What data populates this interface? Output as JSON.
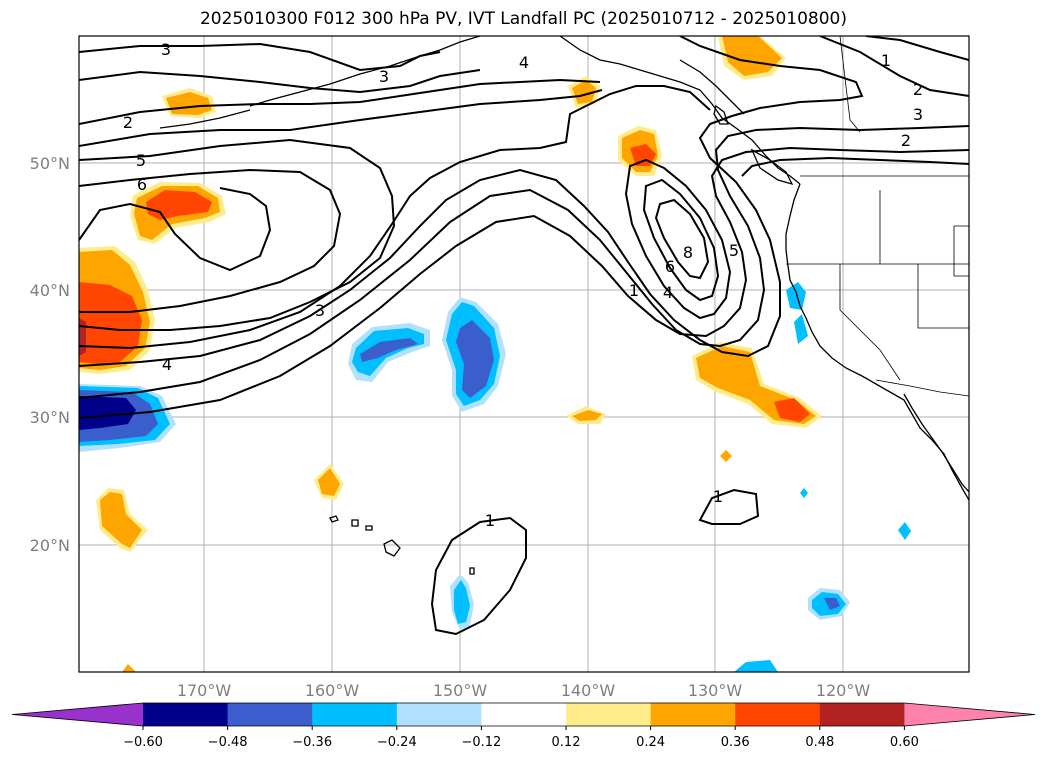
{
  "title": "2025010300 F012 300 hPa PV, IVT Landfall PC (2025010712 - 2025010800)",
  "map": {
    "lon_ticks": [
      "170°W",
      "160°W",
      "150°W",
      "140°W",
      "130°W",
      "120°W"
    ],
    "lat_ticks": [
      "50°N",
      "40°N",
      "30°N",
      "20°N"
    ],
    "gridlines": true,
    "contour_color": "#000000",
    "contour_labels": [
      "3",
      "3",
      "4",
      "1",
      "2",
      "3",
      "2",
      "2",
      "5",
      "6",
      "3",
      "4",
      "8",
      "6",
      "5",
      "4",
      "1",
      "1",
      "1"
    ]
  },
  "colorbar": {
    "tick_labels": [
      "−0.60",
      "−0.48",
      "−0.36",
      "−0.24",
      "−0.12",
      "0.12",
      "0.24",
      "0.36",
      "0.48",
      "0.60"
    ],
    "colors": [
      "#9932cc",
      "#00008b",
      "#3a5fcd",
      "#00bfff",
      "#b0e2ff",
      "#ffffff",
      "#ffec8b",
      "#ffa500",
      "#ff4500",
      "#b22222",
      "#ff82ab"
    ]
  }
}
